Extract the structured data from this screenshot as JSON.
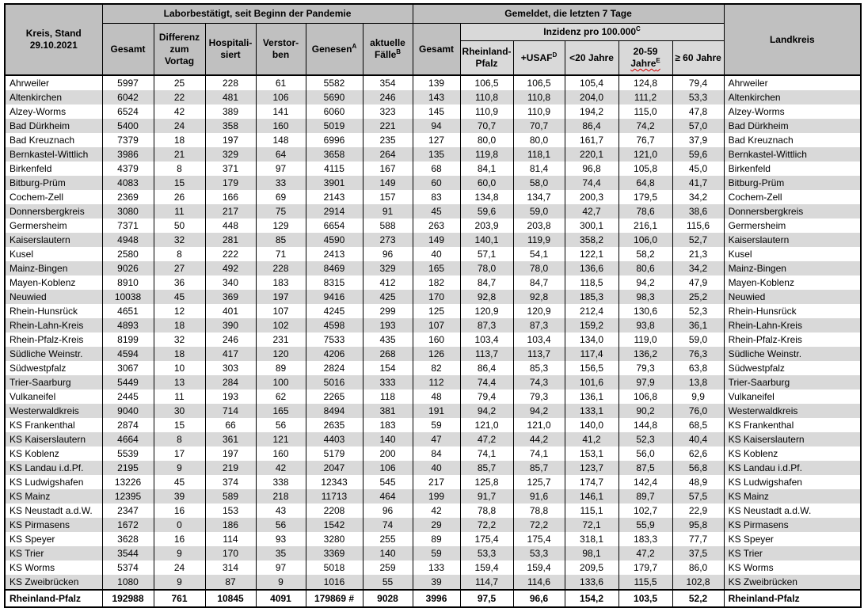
{
  "colors": {
    "header_gray": "#c0c0c0",
    "light_band": "#d9d9d9",
    "row_alt": "#d9d9d9",
    "border": "#000000",
    "spellcheck_red": "#d40000"
  },
  "header": {
    "kreis_stand": "Kreis, Stand\n29.10.2021",
    "labor_section": "Laborbestätigt, seit Beginn der Pandemie",
    "gemeldet_section": "Gemeldet, die letzten 7 Tage",
    "landkreis": "Landkreis",
    "gesamt_labor": "Gesamt",
    "differenz": "Differenz zum Vortag",
    "hospitalisiert": "Hospitali-\nsiert",
    "verstorben": "Verstor-\nben",
    "genesen": "Genesen",
    "genesen_sup": "A",
    "aktuelle_faelle": "aktuelle Fälle",
    "aktuelle_faelle_sup": "B",
    "gesamt_7tage": "Gesamt",
    "inzidenz": "Inzidenz pro 100.000",
    "inzidenz_sup": "C",
    "rheinland_pfalz": "Rheinland-\nPfalz",
    "usaf": "+USAF",
    "usaf_sup": "D",
    "unter20": "<20 Jahre",
    "j2059_prefix": "20-59 ",
    "j2059_squiggle": "Jahre",
    "j2059_sup": "E",
    "ab60": "≥ 60 Jahre"
  },
  "table": {
    "rows": [
      {
        "kreis": "Ahrweiler",
        "values": [
          "5997",
          "25",
          "228",
          "61",
          "5582",
          "354",
          "139",
          "106,5",
          "106,5",
          "105,4",
          "124,8",
          "79,4"
        ],
        "landkreis": "Ahrweiler"
      },
      {
        "kreis": "Altenkirchen",
        "values": [
          "6042",
          "22",
          "481",
          "106",
          "5690",
          "246",
          "143",
          "110,8",
          "110,8",
          "204,0",
          "111,2",
          "53,3"
        ],
        "landkreis": "Altenkirchen"
      },
      {
        "kreis": "Alzey-Worms",
        "values": [
          "6524",
          "42",
          "389",
          "141",
          "6060",
          "323",
          "145",
          "110,9",
          "110,9",
          "194,2",
          "115,0",
          "47,8"
        ],
        "landkreis": "Alzey-Worms"
      },
      {
        "kreis": "Bad Dürkheim",
        "values": [
          "5400",
          "24",
          "358",
          "160",
          "5019",
          "221",
          "94",
          "70,7",
          "70,7",
          "86,4",
          "74,2",
          "57,0"
        ],
        "landkreis": "Bad Dürkheim"
      },
      {
        "kreis": "Bad Kreuznach",
        "values": [
          "7379",
          "18",
          "197",
          "148",
          "6996",
          "235",
          "127",
          "80,0",
          "80,0",
          "161,7",
          "76,7",
          "37,9"
        ],
        "landkreis": "Bad Kreuznach"
      },
      {
        "kreis": "Bernkastel-Wittlich",
        "values": [
          "3986",
          "21",
          "329",
          "64",
          "3658",
          "264",
          "135",
          "119,8",
          "118,1",
          "220,1",
          "121,0",
          "59,6"
        ],
        "landkreis": "Bernkastel-Wittlich"
      },
      {
        "kreis": "Birkenfeld",
        "values": [
          "4379",
          "8",
          "371",
          "97",
          "4115",
          "167",
          "68",
          "84,1",
          "81,4",
          "96,8",
          "105,8",
          "45,0"
        ],
        "landkreis": "Birkenfeld"
      },
      {
        "kreis": "Bitburg-Prüm",
        "values": [
          "4083",
          "15",
          "179",
          "33",
          "3901",
          "149",
          "60",
          "60,0",
          "58,0",
          "74,4",
          "64,8",
          "41,7"
        ],
        "landkreis": "Bitburg-Prüm"
      },
      {
        "kreis": "Cochem-Zell",
        "values": [
          "2369",
          "26",
          "166",
          "69",
          "2143",
          "157",
          "83",
          "134,8",
          "134,7",
          "200,3",
          "179,5",
          "34,2"
        ],
        "landkreis": "Cochem-Zell"
      },
      {
        "kreis": "Donnersbergkreis",
        "values": [
          "3080",
          "11",
          "217",
          "75",
          "2914",
          "91",
          "45",
          "59,6",
          "59,0",
          "42,7",
          "78,6",
          "38,6"
        ],
        "landkreis": "Donnersbergkreis"
      },
      {
        "kreis": "Germersheim",
        "values": [
          "7371",
          "50",
          "448",
          "129",
          "6654",
          "588",
          "263",
          "203,9",
          "203,8",
          "300,1",
          "216,1",
          "115,6"
        ],
        "landkreis": "Germersheim"
      },
      {
        "kreis": "Kaiserslautern",
        "values": [
          "4948",
          "32",
          "281",
          "85",
          "4590",
          "273",
          "149",
          "140,1",
          "119,9",
          "358,2",
          "106,0",
          "52,7"
        ],
        "landkreis": "Kaiserslautern"
      },
      {
        "kreis": "Kusel",
        "values": [
          "2580",
          "8",
          "222",
          "71",
          "2413",
          "96",
          "40",
          "57,1",
          "54,1",
          "122,1",
          "58,2",
          "21,3"
        ],
        "landkreis": "Kusel"
      },
      {
        "kreis": "Mainz-Bingen",
        "values": [
          "9026",
          "27",
          "492",
          "228",
          "8469",
          "329",
          "165",
          "78,0",
          "78,0",
          "136,6",
          "80,6",
          "34,2"
        ],
        "landkreis": "Mainz-Bingen"
      },
      {
        "kreis": "Mayen-Koblenz",
        "values": [
          "8910",
          "36",
          "340",
          "183",
          "8315",
          "412",
          "182",
          "84,7",
          "84,7",
          "118,5",
          "94,2",
          "47,9"
        ],
        "landkreis": "Mayen-Koblenz"
      },
      {
        "kreis": "Neuwied",
        "values": [
          "10038",
          "45",
          "369",
          "197",
          "9416",
          "425",
          "170",
          "92,8",
          "92,8",
          "185,3",
          "98,3",
          "25,2"
        ],
        "landkreis": "Neuwied"
      },
      {
        "kreis": "Rhein-Hunsrück",
        "values": [
          "4651",
          "12",
          "401",
          "107",
          "4245",
          "299",
          "125",
          "120,9",
          "120,9",
          "212,4",
          "130,6",
          "52,3"
        ],
        "landkreis": "Rhein-Hunsrück"
      },
      {
        "kreis": "Rhein-Lahn-Kreis",
        "values": [
          "4893",
          "18",
          "390",
          "102",
          "4598",
          "193",
          "107",
          "87,3",
          "87,3",
          "159,2",
          "93,8",
          "36,1"
        ],
        "landkreis": "Rhein-Lahn-Kreis"
      },
      {
        "kreis": "Rhein-Pfalz-Kreis",
        "values": [
          "8199",
          "32",
          "246",
          "231",
          "7533",
          "435",
          "160",
          "103,4",
          "103,4",
          "134,0",
          "119,0",
          "59,0"
        ],
        "landkreis": "Rhein-Pfalz-Kreis"
      },
      {
        "kreis": "Südliche Weinstr.",
        "values": [
          "4594",
          "18",
          "417",
          "120",
          "4206",
          "268",
          "126",
          "113,7",
          "113,7",
          "117,4",
          "136,2",
          "76,3"
        ],
        "landkreis": "Südliche Weinstr."
      },
      {
        "kreis": "Südwestpfalz",
        "values": [
          "3067",
          "10",
          "303",
          "89",
          "2824",
          "154",
          "82",
          "86,4",
          "85,3",
          "156,5",
          "79,3",
          "63,8"
        ],
        "landkreis": "Südwestpfalz"
      },
      {
        "kreis": "Trier-Saarburg",
        "values": [
          "5449",
          "13",
          "284",
          "100",
          "5016",
          "333",
          "112",
          "74,4",
          "74,3",
          "101,6",
          "97,9",
          "13,8"
        ],
        "landkreis": "Trier-Saarburg"
      },
      {
        "kreis": "Vulkaneifel",
        "values": [
          "2445",
          "11",
          "193",
          "62",
          "2265",
          "118",
          "48",
          "79,4",
          "79,3",
          "136,1",
          "106,8",
          "9,9"
        ],
        "landkreis": "Vulkaneifel"
      },
      {
        "kreis": "Westerwaldkreis",
        "values": [
          "9040",
          "30",
          "714",
          "165",
          "8494",
          "381",
          "191",
          "94,2",
          "94,2",
          "133,1",
          "90,2",
          "76,0"
        ],
        "landkreis": "Westerwaldkreis"
      },
      {
        "kreis": "KS Frankenthal",
        "values": [
          "2874",
          "15",
          "66",
          "56",
          "2635",
          "183",
          "59",
          "121,0",
          "121,0",
          "140,0",
          "144,8",
          "68,5"
        ],
        "landkreis": "KS Frankenthal"
      },
      {
        "kreis": "KS Kaiserslautern",
        "values": [
          "4664",
          "8",
          "361",
          "121",
          "4403",
          "140",
          "47",
          "47,2",
          "44,2",
          "41,2",
          "52,3",
          "40,4"
        ],
        "landkreis": "KS Kaiserslautern"
      },
      {
        "kreis": "KS Koblenz",
        "values": [
          "5539",
          "17",
          "197",
          "160",
          "5179",
          "200",
          "84",
          "74,1",
          "74,1",
          "153,1",
          "56,0",
          "62,6"
        ],
        "landkreis": "KS Koblenz"
      },
      {
        "kreis": "KS Landau i.d.Pf.",
        "values": [
          "2195",
          "9",
          "219",
          "42",
          "2047",
          "106",
          "40",
          "85,7",
          "85,7",
          "123,7",
          "87,5",
          "56,8"
        ],
        "landkreis": "KS Landau i.d.Pf."
      },
      {
        "kreis": "KS Ludwigshafen",
        "values": [
          "13226",
          "45",
          "374",
          "338",
          "12343",
          "545",
          "217",
          "125,8",
          "125,7",
          "174,7",
          "142,4",
          "48,9"
        ],
        "landkreis": "KS Ludwigshafen"
      },
      {
        "kreis": "KS Mainz",
        "values": [
          "12395",
          "39",
          "589",
          "218",
          "11713",
          "464",
          "199",
          "91,7",
          "91,6",
          "146,1",
          "89,7",
          "57,5"
        ],
        "landkreis": "KS Mainz"
      },
      {
        "kreis": "KS Neustadt a.d.W.",
        "values": [
          "2347",
          "16",
          "153",
          "43",
          "2208",
          "96",
          "42",
          "78,8",
          "78,8",
          "115,1",
          "102,7",
          "22,9"
        ],
        "landkreis": "KS Neustadt a.d.W."
      },
      {
        "kreis": "KS Pirmasens",
        "values": [
          "1672",
          "0",
          "186",
          "56",
          "1542",
          "74",
          "29",
          "72,2",
          "72,2",
          "72,1",
          "55,9",
          "95,8"
        ],
        "landkreis": "KS Pirmasens"
      },
      {
        "kreis": "KS Speyer",
        "values": [
          "3628",
          "16",
          "114",
          "93",
          "3280",
          "255",
          "89",
          "175,4",
          "175,4",
          "318,1",
          "183,3",
          "77,7"
        ],
        "landkreis": "KS Speyer"
      },
      {
        "kreis": "KS Trier",
        "values": [
          "3544",
          "9",
          "170",
          "35",
          "3369",
          "140",
          "59",
          "53,3",
          "53,3",
          "98,1",
          "47,2",
          "37,5"
        ],
        "landkreis": "KS Trier"
      },
      {
        "kreis": "KS Worms",
        "values": [
          "5374",
          "24",
          "314",
          "97",
          "5018",
          "259",
          "133",
          "159,4",
          "159,4",
          "209,5",
          "179,7",
          "86,0"
        ],
        "landkreis": "KS Worms"
      },
      {
        "kreis": "KS Zweibrücken",
        "values": [
          "1080",
          "9",
          "87",
          "9",
          "1016",
          "55",
          "39",
          "114,7",
          "114,6",
          "133,6",
          "115,5",
          "102,8"
        ],
        "landkreis": "KS Zweibrücken"
      }
    ],
    "total": {
      "kreis": "Rheinland-Pfalz",
      "values": [
        "192988",
        "761",
        "10845",
        "4091",
        "179869 #",
        "9028",
        "3996",
        "97,5",
        "96,6",
        "154,2",
        "103,5",
        "52,2"
      ],
      "landkreis": "Rheinland-Pfalz"
    }
  }
}
